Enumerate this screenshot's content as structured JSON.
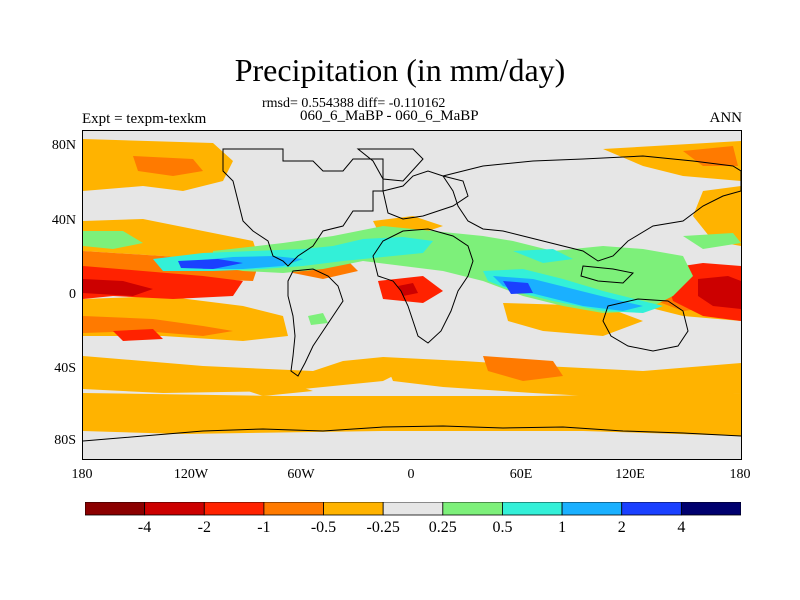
{
  "title": "Precipitation (in mm/day)",
  "stats": "rmsd= 0.554388 diff= -0.110162",
  "subtitle": "060_6_MaBP - 060_6_MaBP",
  "expt_label": "Expt = texpm-texkm",
  "season": "ANN",
  "y_axis": {
    "ticks": [
      "80N",
      "40N",
      "0",
      "40S",
      "80S"
    ]
  },
  "x_axis": {
    "ticks": [
      "180",
      "120W",
      "60W",
      "0",
      "60E",
      "120E",
      "180"
    ]
  },
  "colorbar": {
    "levels": [
      "-4",
      "-2",
      "-1",
      "-0.5",
      "-0.25",
      "0.25",
      "0.5",
      "1",
      "2",
      "4"
    ],
    "colors": [
      "#8b0000",
      "#cc0000",
      "#ff2200",
      "#ff7a00",
      "#ffb300",
      "#e6e6e6",
      "#7df07a",
      "#33f0d8",
      "#1ab0ff",
      "#1a40ff",
      "#00006e"
    ]
  },
  "colors": {
    "background": "#e6e6e6",
    "coastline": "#000000"
  }
}
